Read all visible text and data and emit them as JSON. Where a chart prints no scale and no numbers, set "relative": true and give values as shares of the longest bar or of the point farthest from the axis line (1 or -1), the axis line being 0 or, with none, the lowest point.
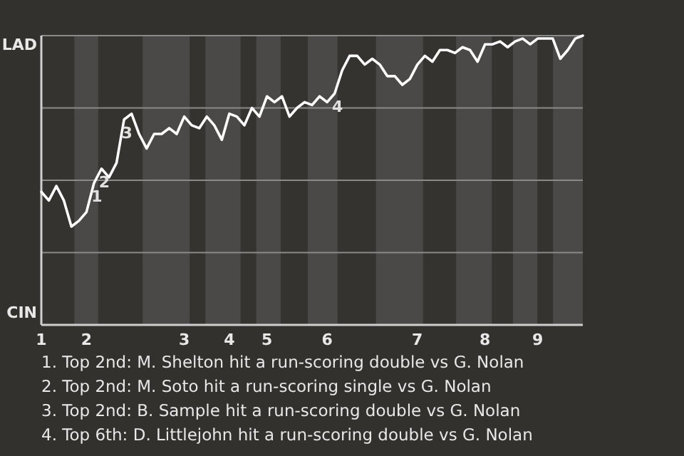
{
  "chart_data": {
    "type": "line",
    "relative": true,
    "categories": [
      "1",
      null,
      null,
      null,
      null,
      null,
      "2",
      null,
      null,
      null,
      null,
      null,
      null,
      null,
      null,
      null,
      null,
      null,
      null,
      "3",
      null,
      null,
      null,
      null,
      null,
      "4",
      null,
      null,
      null,
      null,
      "5",
      null,
      null,
      null,
      null,
      null,
      null,
      null,
      "6",
      null,
      null,
      null,
      null,
      null,
      null,
      null,
      null,
      null,
      null,
      null,
      "7",
      null,
      null,
      null,
      null,
      null,
      null,
      null,
      null,
      "8",
      null,
      null,
      null,
      null,
      null,
      null,
      "9",
      null,
      null,
      null,
      null,
      null,
      null
    ],
    "marker": "none",
    "line_style": "solid",
    "ref_lines": [
      {
        "axis": "y",
        "value": 0.25,
        "color": "#8a8a88"
      },
      {
        "axis": "y",
        "value": 0.5,
        "color": "#8a8a88"
      },
      {
        "axis": "y",
        "value": 0.75,
        "color": "#8a8a88"
      },
      {
        "axis": "y",
        "value": 1,
        "color": "#8a8a88"
      }
    ],
    "series": [
      {
        "color": "#ffffff",
        "values": [
          0.46,
          0.43,
          0.48,
          0.43,
          0.34,
          0.36,
          0.39,
          0.49,
          0.54,
          0.51,
          0.56,
          0.71,
          0.73,
          0.66,
          0.61,
          0.66,
          0.66,
          0.68,
          0.66,
          0.72,
          0.69,
          0.68,
          0.72,
          0.69,
          0.64,
          0.73,
          0.72,
          0.69,
          0.75,
          0.72,
          0.79,
          0.77,
          0.79,
          0.72,
          0.75,
          0.77,
          0.76,
          0.79,
          0.77,
          0.8,
          0.88,
          0.93,
          0.93,
          0.9,
          0.92,
          0.9,
          0.86,
          0.86,
          0.83,
          0.85,
          0.9,
          0.93,
          0.91,
          0.95,
          0.95,
          0.94,
          0.96,
          0.95,
          0.91,
          0.97,
          0.97,
          0.98,
          0.96,
          0.98,
          0.99,
          0.97,
          0.99,
          0.99,
          0.99,
          0.92,
          0.95,
          0.99,
          1
        ]
      }
    ],
    "annotations": [
      "LAD",
      "CIN",
      {
        "text": "1",
        "y": 0.49
      },
      {
        "text": "2",
        "y": 0.54
      },
      {
        "text": "3",
        "y": 0.71
      },
      {
        "text": "4",
        "y": 0.8
      },
      "1. Top 2nd: M. Shelton hit a run-scoring double vs G. Nolan",
      "2. Top 2nd: M. Soto hit a run-scoring single vs G. Nolan",
      "3. Top 2nd: B. Sample hit a run-scoring double vs G. Nolan",
      "4. Top 6th: D. Littlejohn hit a run-scoring double vs G. Nolan"
    ]
  }
}
